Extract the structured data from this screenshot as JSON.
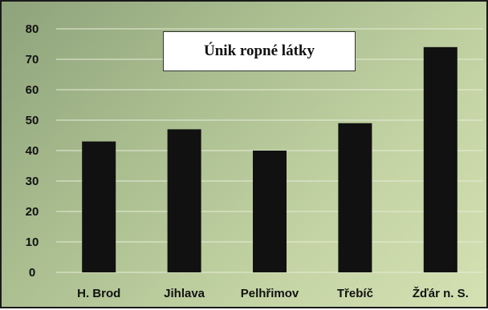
{
  "chart_data": {
    "type": "bar",
    "title": "Únik ropné látky",
    "categories": [
      "H. Brod",
      "Jihlava",
      "Pelhřimov",
      "Třebíč",
      "Žďár n. S."
    ],
    "values": [
      43,
      47,
      40,
      49,
      74
    ],
    "xlabel": "",
    "ylabel": "",
    "ylim": [
      0,
      80
    ],
    "yticks": [
      "0",
      "10",
      "20",
      "30",
      "40",
      "50",
      "60",
      "70",
      "80"
    ],
    "grid": true,
    "legend": "none",
    "colors": {
      "bar": "#111111",
      "background_start": "#8fa37c",
      "background_end": "#d4e1b3",
      "gridline": "#e6ecd8"
    }
  }
}
